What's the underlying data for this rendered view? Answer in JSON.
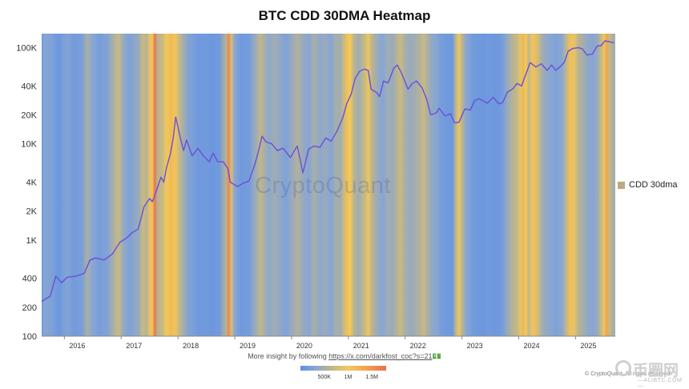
{
  "chart_data": {
    "type": "line",
    "title": "BTC CDD 30DMA Heatmap",
    "y_scale": "log",
    "ylim": [
      100,
      140000
    ],
    "y_ticks": [
      {
        "value": 100,
        "label": "100"
      },
      {
        "value": 200,
        "label": "200"
      },
      {
        "value": 400,
        "label": "400"
      },
      {
        "value": 1000,
        "label": "1K"
      },
      {
        "value": 2000,
        "label": "2K"
      },
      {
        "value": 4000,
        "label": "4K"
      },
      {
        "value": 10000,
        "label": "10K"
      },
      {
        "value": 20000,
        "label": "20K"
      },
      {
        "value": 40000,
        "label": "40K"
      },
      {
        "value": 100000,
        "label": "100K"
      }
    ],
    "xlim": [
      2015.6,
      2025.7
    ],
    "x_ticks": [
      {
        "value": 2016,
        "label": "2016"
      },
      {
        "value": 2017,
        "label": "2017"
      },
      {
        "value": 2018,
        "label": "2018"
      },
      {
        "value": 2019,
        "label": "2019"
      },
      {
        "value": 2020,
        "label": "2020"
      },
      {
        "value": 2021,
        "label": "2021"
      },
      {
        "value": 2022,
        "label": "2022"
      },
      {
        "value": 2023,
        "label": "2023"
      },
      {
        "value": 2024,
        "label": "2024"
      },
      {
        "value": 2025,
        "label": "2025"
      }
    ],
    "series": [
      {
        "name": "price",
        "color": "#6a4fd8",
        "points": [
          [
            2015.6,
            230
          ],
          [
            2015.75,
            260
          ],
          [
            2015.85,
            420
          ],
          [
            2015.95,
            360
          ],
          [
            2016.05,
            410
          ],
          [
            2016.2,
            420
          ],
          [
            2016.35,
            450
          ],
          [
            2016.45,
            620
          ],
          [
            2016.55,
            650
          ],
          [
            2016.7,
            620
          ],
          [
            2016.85,
            720
          ],
          [
            2016.98,
            950
          ],
          [
            2017.1,
            1050
          ],
          [
            2017.2,
            1200
          ],
          [
            2017.3,
            1300
          ],
          [
            2017.4,
            2200
          ],
          [
            2017.5,
            2700
          ],
          [
            2017.55,
            2500
          ],
          [
            2017.6,
            3000
          ],
          [
            2017.7,
            4500
          ],
          [
            2017.75,
            4000
          ],
          [
            2017.8,
            5700
          ],
          [
            2017.87,
            8000
          ],
          [
            2017.92,
            12000
          ],
          [
            2017.96,
            19000
          ],
          [
            2018.0,
            15000
          ],
          [
            2018.05,
            11000
          ],
          [
            2018.1,
            8500
          ],
          [
            2018.15,
            11000
          ],
          [
            2018.25,
            7500
          ],
          [
            2018.35,
            9000
          ],
          [
            2018.45,
            7500
          ],
          [
            2018.55,
            6500
          ],
          [
            2018.62,
            8000
          ],
          [
            2018.7,
            6500
          ],
          [
            2018.8,
            6500
          ],
          [
            2018.88,
            5500
          ],
          [
            2018.92,
            4000
          ],
          [
            2018.98,
            3800
          ],
          [
            2019.05,
            3600
          ],
          [
            2019.15,
            3900
          ],
          [
            2019.25,
            4100
          ],
          [
            2019.35,
            6000
          ],
          [
            2019.42,
            8500
          ],
          [
            2019.48,
            12000
          ],
          [
            2019.55,
            10500
          ],
          [
            2019.65,
            10000
          ],
          [
            2019.75,
            8500
          ],
          [
            2019.85,
            9000
          ],
          [
            2019.98,
            7200
          ],
          [
            2020.1,
            9500
          ],
          [
            2020.2,
            5000
          ],
          [
            2020.3,
            8800
          ],
          [
            2020.4,
            9500
          ],
          [
            2020.5,
            9200
          ],
          [
            2020.6,
            11500
          ],
          [
            2020.7,
            10700
          ],
          [
            2020.8,
            13500
          ],
          [
            2020.9,
            18500
          ],
          [
            2020.97,
            26000
          ],
          [
            2021.05,
            33000
          ],
          [
            2021.12,
            48000
          ],
          [
            2021.2,
            57000
          ],
          [
            2021.28,
            60000
          ],
          [
            2021.35,
            58000
          ],
          [
            2021.4,
            37000
          ],
          [
            2021.5,
            34000
          ],
          [
            2021.55,
            31000
          ],
          [
            2021.62,
            45000
          ],
          [
            2021.7,
            43000
          ],
          [
            2021.8,
            61000
          ],
          [
            2021.86,
            66000
          ],
          [
            2021.92,
            57000
          ],
          [
            2021.98,
            47000
          ],
          [
            2022.05,
            37000
          ],
          [
            2022.12,
            42000
          ],
          [
            2022.2,
            45000
          ],
          [
            2022.3,
            38000
          ],
          [
            2022.38,
            29000
          ],
          [
            2022.45,
            20000
          ],
          [
            2022.55,
            21000
          ],
          [
            2022.6,
            23500
          ],
          [
            2022.7,
            19500
          ],
          [
            2022.8,
            20500
          ],
          [
            2022.87,
            16500
          ],
          [
            2022.95,
            16800
          ],
          [
            2023.05,
            23000
          ],
          [
            2023.15,
            22500
          ],
          [
            2023.22,
            28000
          ],
          [
            2023.3,
            29500
          ],
          [
            2023.45,
            26500
          ],
          [
            2023.55,
            30500
          ],
          [
            2023.65,
            26000
          ],
          [
            2023.72,
            27000
          ],
          [
            2023.8,
            34500
          ],
          [
            2023.9,
            37500
          ],
          [
            2023.97,
            42500
          ],
          [
            2024.05,
            40000
          ],
          [
            2024.12,
            52000
          ],
          [
            2024.2,
            70000
          ],
          [
            2024.3,
            63000
          ],
          [
            2024.4,
            68000
          ],
          [
            2024.5,
            58000
          ],
          [
            2024.58,
            66000
          ],
          [
            2024.65,
            58000
          ],
          [
            2024.72,
            63000
          ],
          [
            2024.8,
            70000
          ],
          [
            2024.87,
            92000
          ],
          [
            2024.95,
            98000
          ],
          [
            2025.05,
            100000
          ],
          [
            2025.12,
            97000
          ],
          [
            2025.2,
            84000
          ],
          [
            2025.3,
            86000
          ],
          [
            2025.38,
            104000
          ],
          [
            2025.45,
            105000
          ],
          [
            2025.52,
            118000
          ],
          [
            2025.6,
            115000
          ],
          [
            2025.68,
            112000
          ]
        ]
      }
    ],
    "heatmap": {
      "series_name": "CDD 30dma",
      "legend_color": "#b9aa83",
      "colorscale": [
        {
          "v": 0,
          "color": "#5b8ee6"
        },
        {
          "v": 300000,
          "color": "#87a6d4"
        },
        {
          "v": 600000,
          "color": "#b9b392"
        },
        {
          "v": 1000000,
          "color": "#f2c95b"
        },
        {
          "v": 1400000,
          "color": "#f0a050"
        },
        {
          "v": 1800000,
          "color": "#e8704e"
        }
      ],
      "colorbar_ticks": [
        {
          "value": 500000,
          "label": "500K"
        },
        {
          "value": 1000000,
          "label": "1M"
        },
        {
          "value": 1500000,
          "label": "1.5M"
        }
      ],
      "bands": [
        [
          2015.6,
          150000
        ],
        [
          2015.65,
          300000
        ],
        [
          2015.75,
          250000
        ],
        [
          2015.9,
          120000
        ],
        [
          2016.05,
          280000
        ],
        [
          2016.15,
          180000
        ],
        [
          2016.3,
          200000
        ],
        [
          2016.4,
          500000
        ],
        [
          2016.5,
          300000
        ],
        [
          2016.6,
          200000
        ],
        [
          2016.75,
          250000
        ],
        [
          2016.85,
          500000
        ],
        [
          2016.95,
          700000
        ],
        [
          2017.05,
          350000
        ],
        [
          2017.15,
          250000
        ],
        [
          2017.3,
          400000
        ],
        [
          2017.38,
          700000
        ],
        [
          2017.45,
          600000
        ],
        [
          2017.5,
          900000
        ],
        [
          2017.55,
          1100000
        ],
        [
          2017.59,
          1750000
        ],
        [
          2017.64,
          600000
        ],
        [
          2017.72,
          700000
        ],
        [
          2017.8,
          1000000
        ],
        [
          2017.87,
          1150000
        ],
        [
          2017.95,
          1050000
        ],
        [
          2018.02,
          700000
        ],
        [
          2018.1,
          450000
        ],
        [
          2018.2,
          250000
        ],
        [
          2018.35,
          150000
        ],
        [
          2018.5,
          150000
        ],
        [
          2018.6,
          120000
        ],
        [
          2018.72,
          150000
        ],
        [
          2018.85,
          600000
        ],
        [
          2018.89,
          1600000
        ],
        [
          2018.94,
          800000
        ],
        [
          2019.0,
          300000
        ],
        [
          2019.1,
          150000
        ],
        [
          2019.25,
          180000
        ],
        [
          2019.35,
          400000
        ],
        [
          2019.45,
          650000
        ],
        [
          2019.52,
          500000
        ],
        [
          2019.6,
          350000
        ],
        [
          2019.7,
          450000
        ],
        [
          2019.8,
          350000
        ],
        [
          2019.9,
          250000
        ],
        [
          2020.0,
          400000
        ],
        [
          2020.1,
          550000
        ],
        [
          2020.2,
          400000
        ],
        [
          2020.3,
          300000
        ],
        [
          2020.4,
          500000
        ],
        [
          2020.5,
          350000
        ],
        [
          2020.6,
          400000
        ],
        [
          2020.7,
          300000
        ],
        [
          2020.78,
          500000
        ],
        [
          2020.85,
          450000
        ],
        [
          2020.92,
          700000
        ],
        [
          2020.97,
          1100000
        ],
        [
          2021.03,
          1000000
        ],
        [
          2021.1,
          600000
        ],
        [
          2021.18,
          450000
        ],
        [
          2021.28,
          700000
        ],
        [
          2021.35,
          950000
        ],
        [
          2021.42,
          600000
        ],
        [
          2021.52,
          400000
        ],
        [
          2021.6,
          300000
        ],
        [
          2021.7,
          450000
        ],
        [
          2021.78,
          400000
        ],
        [
          2021.85,
          600000
        ],
        [
          2021.92,
          700000
        ],
        [
          2022.0,
          500000
        ],
        [
          2022.08,
          400000
        ],
        [
          2022.15,
          450000
        ],
        [
          2022.25,
          550000
        ],
        [
          2022.33,
          700000
        ],
        [
          2022.4,
          500000
        ],
        [
          2022.48,
          350000
        ],
        [
          2022.55,
          300000
        ],
        [
          2022.62,
          200000
        ],
        [
          2022.72,
          150000
        ],
        [
          2022.83,
          120000
        ],
        [
          2022.9,
          700000
        ],
        [
          2022.95,
          950000
        ],
        [
          2023.0,
          600000
        ],
        [
          2023.08,
          300000
        ],
        [
          2023.2,
          150000
        ],
        [
          2023.35,
          120000
        ],
        [
          2023.5,
          150000
        ],
        [
          2023.62,
          120000
        ],
        [
          2023.72,
          200000
        ],
        [
          2023.82,
          450000
        ],
        [
          2023.9,
          600000
        ],
        [
          2023.97,
          700000
        ],
        [
          2024.03,
          900000
        ],
        [
          2024.08,
          1200000
        ],
        [
          2024.12,
          1000000
        ],
        [
          2024.18,
          650000
        ],
        [
          2024.22,
          900000
        ],
        [
          2024.28,
          1100000
        ],
        [
          2024.35,
          700000
        ],
        [
          2024.42,
          450000
        ],
        [
          2024.5,
          350000
        ],
        [
          2024.58,
          300000
        ],
        [
          2024.65,
          250000
        ],
        [
          2024.75,
          300000
        ],
        [
          2024.85,
          700000
        ],
        [
          2024.9,
          1100000
        ],
        [
          2024.98,
          900000
        ],
        [
          2025.05,
          600000
        ],
        [
          2025.12,
          500000
        ],
        [
          2025.22,
          350000
        ],
        [
          2025.3,
          300000
        ],
        [
          2025.38,
          400000
        ],
        [
          2025.45,
          700000
        ],
        [
          2025.5,
          950000
        ],
        [
          2025.55,
          1350000
        ],
        [
          2025.6,
          700000
        ],
        [
          2025.65,
          500000
        ]
      ]
    },
    "legend_placement": "right",
    "grid": false
  },
  "footer": {
    "text": "More insight by following ",
    "link_text": "https://x.com/darkfost_coc?s=21",
    "emoji": "💵"
  },
  "watermark": "CryptoQuant",
  "copyright": "© CryptoQuant. All rights reserved",
  "brand": {
    "cn": "币圈网",
    "en": "—ALIBTC.COM—"
  }
}
